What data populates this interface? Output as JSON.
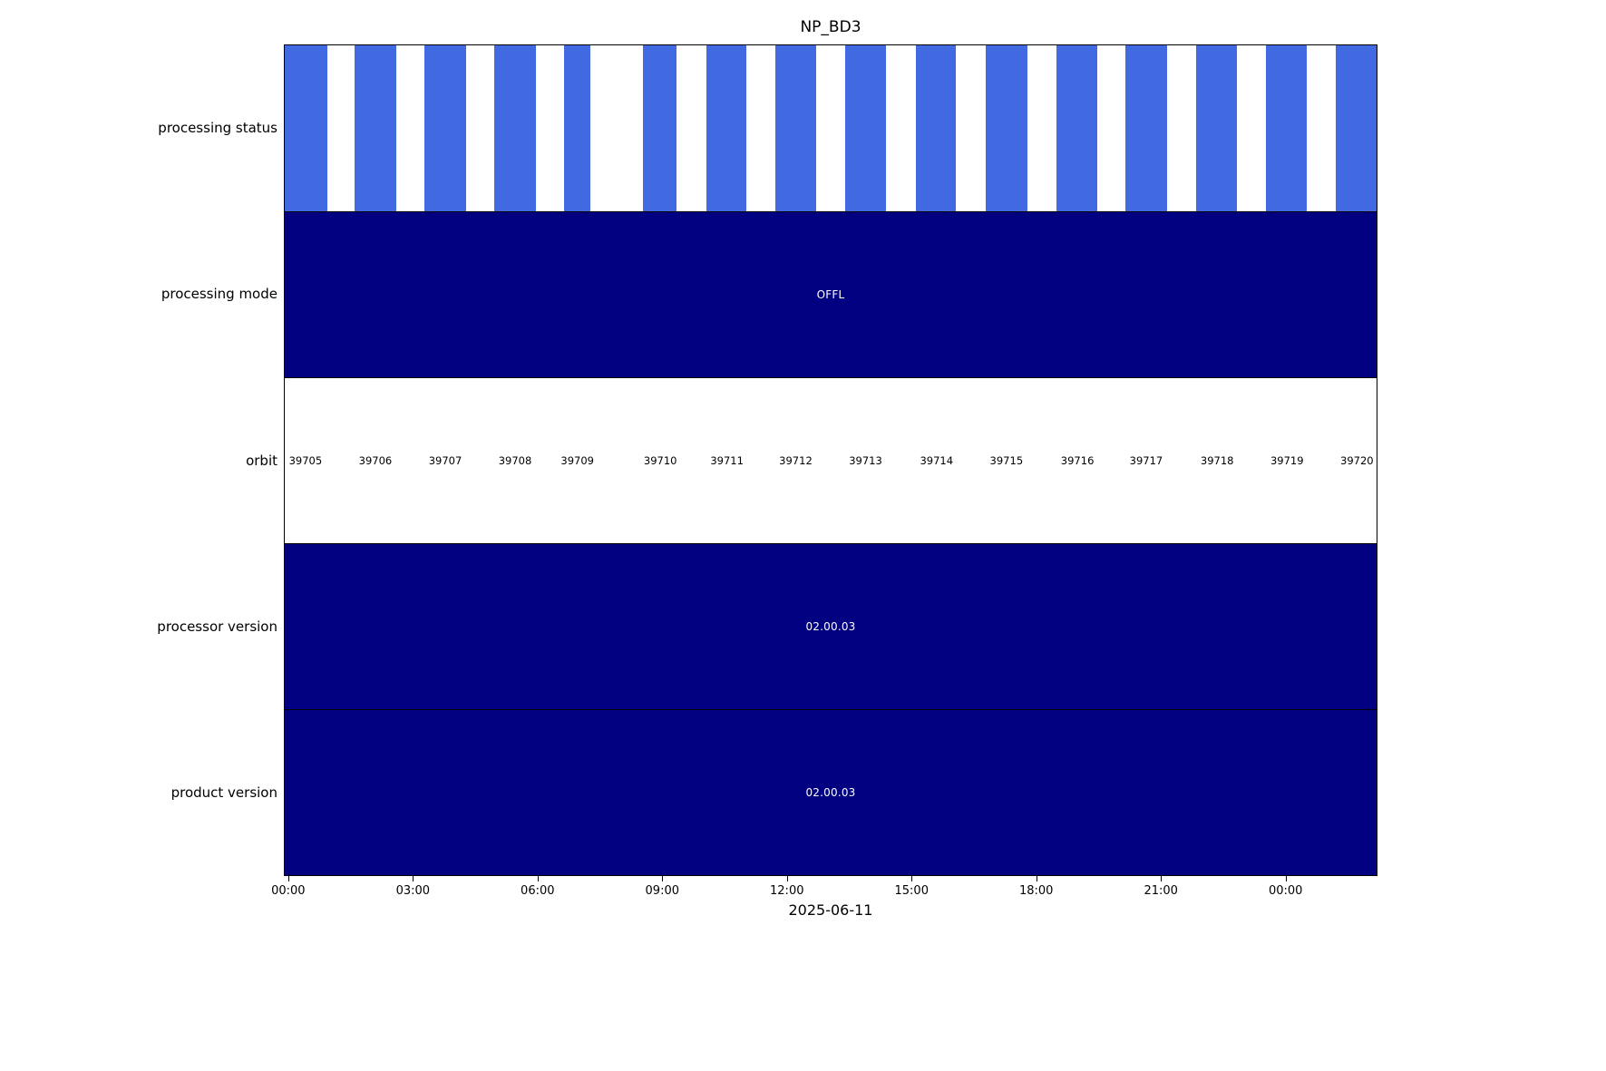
{
  "title": "NP_BD3",
  "chart_data": {
    "type": "bar",
    "subtype": "satellite-product-status-timeline",
    "title": "NP_BD3",
    "xlabel": "2025-06-11",
    "grid": false,
    "legend": "none",
    "x_axis": {
      "tick_labels": [
        "00:00",
        "03:00",
        "06:00",
        "09:00",
        "12:00",
        "15:00",
        "18:00",
        "21:00",
        "00:00"
      ],
      "tick_positions_pct": [
        0.4,
        11.8,
        23.2,
        34.6,
        46.0,
        57.4,
        68.8,
        80.2,
        91.6
      ],
      "tick_interval_hours": 3
    },
    "colors": {
      "segment_blue": "#4169e1",
      "band_navy": "#000080",
      "background": "#ffffff",
      "text": "#000000",
      "band_text": "#ffffff"
    },
    "rows": [
      {
        "label": "processing status",
        "kind": "segments",
        "segments_pct": [
          [
            0.0,
            3.9
          ],
          [
            6.4,
            10.2
          ],
          [
            12.8,
            16.6
          ],
          [
            19.2,
            23.0
          ],
          [
            25.6,
            28.0
          ],
          [
            32.8,
            35.9
          ],
          [
            38.6,
            42.3
          ],
          [
            44.9,
            48.7
          ],
          [
            51.3,
            55.1
          ],
          [
            57.8,
            61.5
          ],
          [
            64.2,
            68.0
          ],
          [
            70.7,
            74.4
          ],
          [
            77.0,
            80.8
          ],
          [
            83.5,
            87.2
          ],
          [
            89.9,
            93.6
          ],
          [
            96.3,
            100.0
          ]
        ]
      },
      {
        "label": "processing mode",
        "kind": "solid",
        "value": "OFFL"
      },
      {
        "label": "orbit",
        "kind": "labels",
        "orbit_numbers": [
          "39705",
          "39706",
          "39707",
          "39708",
          "39709",
          "39710",
          "39711",
          "39712",
          "39713",
          "39714",
          "39715",
          "39716",
          "39717",
          "39718",
          "39719",
          "39720"
        ],
        "positions_pct": [
          1.9,
          8.3,
          14.7,
          21.1,
          26.8,
          34.4,
          40.5,
          46.8,
          53.2,
          59.7,
          66.1,
          72.6,
          78.9,
          85.4,
          91.8,
          98.2
        ]
      },
      {
        "label": "processor version",
        "kind": "solid",
        "value": "02.00.03"
      },
      {
        "label": "product version",
        "kind": "solid",
        "value": "02.00.03"
      }
    ]
  }
}
